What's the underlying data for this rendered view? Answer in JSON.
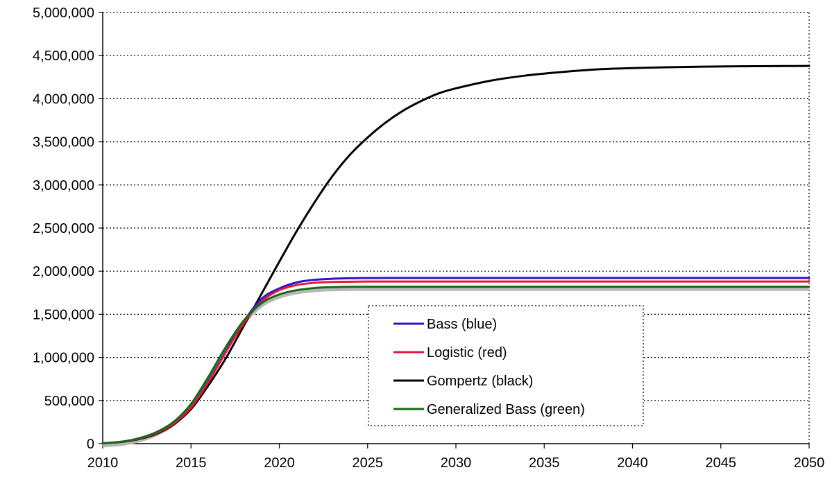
{
  "chart_data": {
    "type": "line",
    "title": "",
    "xlabel": "",
    "ylabel": "",
    "xlim": [
      2010,
      2050
    ],
    "ylim": [
      0,
      5000000
    ],
    "x_ticks": [
      2010,
      2015,
      2020,
      2025,
      2030,
      2035,
      2040,
      2045,
      2050
    ],
    "x_tick_labels": [
      "2010",
      "2015",
      "2020",
      "2025",
      "2030",
      "2035",
      "2040",
      "2045",
      "2050"
    ],
    "y_ticks": [
      0,
      500000,
      1000000,
      1500000,
      2000000,
      2500000,
      3000000,
      3500000,
      4000000,
      4500000,
      5000000
    ],
    "y_tick_labels": [
      "0",
      "500,000",
      "1,000,000",
      "1,500,000",
      "2,000,000",
      "2,500,000",
      "3,000,000",
      "3,500,000",
      "4,000,000",
      "4,500,000",
      "5,000,000"
    ],
    "grid": "horizontal-dotted",
    "legend_position": "center-bottom",
    "x": [
      2010,
      2011,
      2012,
      2013,
      2014,
      2015,
      2016,
      2017,
      2018,
      2019,
      2020,
      2021,
      2022,
      2023,
      2024,
      2025,
      2026,
      2027,
      2028,
      2029,
      2030,
      2032,
      2034,
      2036,
      2038,
      2040,
      2042,
      2044,
      2046,
      2048,
      2050
    ],
    "series": [
      {
        "name": "Gompertz (black)",
        "color": "#000000",
        "values": [
          5000,
          18000,
          50000,
          110000,
          220000,
          400000,
          680000,
          1000000,
          1370000,
          1740000,
          2110000,
          2470000,
          2800000,
          3100000,
          3350000,
          3550000,
          3720000,
          3860000,
          3970000,
          4060000,
          4120000,
          4210000,
          4270000,
          4310000,
          4340000,
          4355000,
          4365000,
          4372000,
          4376000,
          4378000,
          4380000
        ]
      },
      {
        "name": "Bass (blue)",
        "color": "#2a16c8",
        "values": [
          5000,
          20000,
          55000,
          120000,
          230000,
          420000,
          730000,
          1080000,
          1420000,
          1680000,
          1800000,
          1870000,
          1900000,
          1912000,
          1918000,
          1920000,
          1921000,
          1921000,
          1921000,
          1921000,
          1921000,
          1921000,
          1921000,
          1921000,
          1921000,
          1921000,
          1921000,
          1921000,
          1921000,
          1921000,
          1921000
        ]
      },
      {
        "name": "Logistic (red)",
        "color": "#e8173a",
        "values": [
          5000,
          20000,
          55000,
          120000,
          230000,
          420000,
          720000,
          1070000,
          1400000,
          1650000,
          1780000,
          1840000,
          1865000,
          1875000,
          1878000,
          1880000,
          1880000,
          1880000,
          1880000,
          1880000,
          1880000,
          1880000,
          1880000,
          1880000,
          1880000,
          1880000,
          1880000,
          1880000,
          1880000,
          1880000,
          1880000
        ]
      },
      {
        "name": "Generalized Bass (green)",
        "color": "#136b13",
        "values": [
          5000,
          21000,
          60000,
          130000,
          250000,
          460000,
          780000,
          1130000,
          1430000,
          1630000,
          1730000,
          1780000,
          1805000,
          1815000,
          1819000,
          1820000,
          1820000,
          1820000,
          1820000,
          1820000,
          1820000,
          1820000,
          1820000,
          1820000,
          1820000,
          1820000,
          1820000,
          1820000,
          1820000,
          1820000,
          1820000
        ]
      }
    ],
    "legend": [
      {
        "label": "Bass (blue)",
        "color": "#2a16c8"
      },
      {
        "label": "Logistic (red)",
        "color": "#e8173a"
      },
      {
        "label": "Gompertz (black)",
        "color": "#000000"
      },
      {
        "label": "Generalized Bass (green)",
        "color": "#136b13"
      }
    ]
  }
}
